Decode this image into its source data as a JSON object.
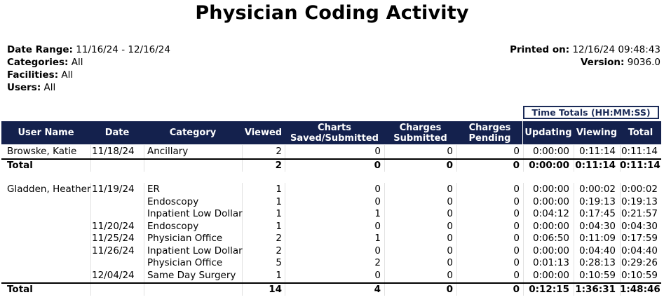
{
  "title": "Physician Coding Activity",
  "meta": {
    "date_range_label": "Date Range:",
    "date_range": "11/16/24 - 12/16/24",
    "categories_label": "Categories:",
    "categories": "All",
    "facilities_label": "Facilities:",
    "facilities": "All",
    "users_label": "Users:",
    "users": "All",
    "printed_label": "Printed on:",
    "printed": "12/16/24 09:48:43",
    "version_label": "Version:",
    "version": "9036.0"
  },
  "time_totals_label": "Time Totals (HH:MM:SS)",
  "columns": {
    "user": "User Name",
    "date": "Date",
    "category": "Category",
    "viewed": "Viewed",
    "charts_1": "Charts",
    "charts_2": "Saved/Submitted",
    "charges_sub_1": "Charges",
    "charges_sub_2": "Submitted",
    "charges_pen_1": "Charges",
    "charges_pen_2": "Pending",
    "updating": "Updating",
    "viewing": "Viewing",
    "total": "Total"
  },
  "groups": [
    {
      "user": "Browske, Katie",
      "rows": [
        {
          "date": "11/18/24",
          "category": "Ancillary",
          "viewed": "2",
          "charts": "0",
          "charges_submitted": "0",
          "charges_pending": "0",
          "updating": "0:00:00",
          "viewing": "0:11:14",
          "total": "0:11:14"
        }
      ],
      "total": {
        "label": "Total",
        "viewed": "2",
        "charts": "0",
        "charges_submitted": "0",
        "charges_pending": "0",
        "updating": "0:00:00",
        "viewing": "0:11:14",
        "total": "0:11:14"
      }
    },
    {
      "user": "Gladden, Heather",
      "rows": [
        {
          "date": "11/19/24",
          "category": "ER",
          "viewed": "1",
          "charts": "0",
          "charges_submitted": "0",
          "charges_pending": "0",
          "updating": "0:00:00",
          "viewing": "0:00:02",
          "total": "0:00:02"
        },
        {
          "date": "",
          "category": "Endoscopy",
          "viewed": "1",
          "charts": "0",
          "charges_submitted": "0",
          "charges_pending": "0",
          "updating": "0:00:00",
          "viewing": "0:19:13",
          "total": "0:19:13"
        },
        {
          "date": "",
          "category": "Inpatient Low Dollar",
          "viewed": "1",
          "charts": "1",
          "charges_submitted": "0",
          "charges_pending": "0",
          "updating": "0:04:12",
          "viewing": "0:17:45",
          "total": "0:21:57"
        },
        {
          "date": "11/20/24",
          "category": "Endoscopy",
          "viewed": "1",
          "charts": "0",
          "charges_submitted": "0",
          "charges_pending": "0",
          "updating": "0:00:00",
          "viewing": "0:04:30",
          "total": "0:04:30"
        },
        {
          "date": "11/25/24",
          "category": "Physician Office",
          "viewed": "2",
          "charts": "1",
          "charges_submitted": "0",
          "charges_pending": "0",
          "updating": "0:06:50",
          "viewing": "0:11:09",
          "total": "0:17:59"
        },
        {
          "date": "11/26/24",
          "category": "Inpatient Low Dollar",
          "viewed": "2",
          "charts": "0",
          "charges_submitted": "0",
          "charges_pending": "0",
          "updating": "0:00:00",
          "viewing": "0:04:40",
          "total": "0:04:40"
        },
        {
          "date": "",
          "category": "Physician Office",
          "viewed": "5",
          "charts": "2",
          "charges_submitted": "0",
          "charges_pending": "0",
          "updating": "0:01:13",
          "viewing": "0:28:13",
          "total": "0:29:26"
        },
        {
          "date": "12/04/24",
          "category": "Same Day Surgery",
          "viewed": "1",
          "charts": "0",
          "charges_submitted": "0",
          "charges_pending": "0",
          "updating": "0:00:00",
          "viewing": "0:10:59",
          "total": "0:10:59"
        }
      ],
      "total": {
        "label": "Total",
        "viewed": "14",
        "charts": "4",
        "charges_submitted": "0",
        "charges_pending": "0",
        "updating": "0:12:15",
        "viewing": "1:36:31",
        "total": "1:48:46"
      }
    }
  ]
}
